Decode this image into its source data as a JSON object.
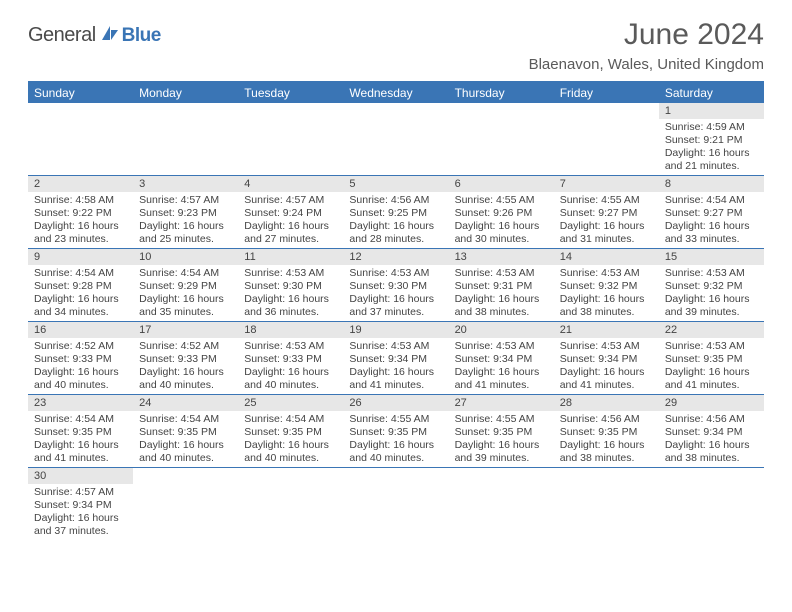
{
  "logo": {
    "main": "General",
    "sub": "Blue"
  },
  "title": "June 2024",
  "location": "Blaenavon, Wales, United Kingdom",
  "headers": [
    "Sunday",
    "Monday",
    "Tuesday",
    "Wednesday",
    "Thursday",
    "Friday",
    "Saturday"
  ],
  "colors": {
    "accent": "#3a75b5",
    "header_bg": "#3a75b5",
    "header_fg": "#ffffff",
    "daynum_bg": "#e7e7e7",
    "rule": "#3a75b5"
  },
  "weeks": [
    [
      null,
      null,
      null,
      null,
      null,
      null,
      {
        "n": "1",
        "sr": "4:59 AM",
        "ss": "9:21 PM",
        "dl": "16 hours and 21 minutes."
      }
    ],
    [
      {
        "n": "2",
        "sr": "4:58 AM",
        "ss": "9:22 PM",
        "dl": "16 hours and 23 minutes."
      },
      {
        "n": "3",
        "sr": "4:57 AM",
        "ss": "9:23 PM",
        "dl": "16 hours and 25 minutes."
      },
      {
        "n": "4",
        "sr": "4:57 AM",
        "ss": "9:24 PM",
        "dl": "16 hours and 27 minutes."
      },
      {
        "n": "5",
        "sr": "4:56 AM",
        "ss": "9:25 PM",
        "dl": "16 hours and 28 minutes."
      },
      {
        "n": "6",
        "sr": "4:55 AM",
        "ss": "9:26 PM",
        "dl": "16 hours and 30 minutes."
      },
      {
        "n": "7",
        "sr": "4:55 AM",
        "ss": "9:27 PM",
        "dl": "16 hours and 31 minutes."
      },
      {
        "n": "8",
        "sr": "4:54 AM",
        "ss": "9:27 PM",
        "dl": "16 hours and 33 minutes."
      }
    ],
    [
      {
        "n": "9",
        "sr": "4:54 AM",
        "ss": "9:28 PM",
        "dl": "16 hours and 34 minutes."
      },
      {
        "n": "10",
        "sr": "4:54 AM",
        "ss": "9:29 PM",
        "dl": "16 hours and 35 minutes."
      },
      {
        "n": "11",
        "sr": "4:53 AM",
        "ss": "9:30 PM",
        "dl": "16 hours and 36 minutes."
      },
      {
        "n": "12",
        "sr": "4:53 AM",
        "ss": "9:30 PM",
        "dl": "16 hours and 37 minutes."
      },
      {
        "n": "13",
        "sr": "4:53 AM",
        "ss": "9:31 PM",
        "dl": "16 hours and 38 minutes."
      },
      {
        "n": "14",
        "sr": "4:53 AM",
        "ss": "9:32 PM",
        "dl": "16 hours and 38 minutes."
      },
      {
        "n": "15",
        "sr": "4:53 AM",
        "ss": "9:32 PM",
        "dl": "16 hours and 39 minutes."
      }
    ],
    [
      {
        "n": "16",
        "sr": "4:52 AM",
        "ss": "9:33 PM",
        "dl": "16 hours and 40 minutes."
      },
      {
        "n": "17",
        "sr": "4:52 AM",
        "ss": "9:33 PM",
        "dl": "16 hours and 40 minutes."
      },
      {
        "n": "18",
        "sr": "4:53 AM",
        "ss": "9:33 PM",
        "dl": "16 hours and 40 minutes."
      },
      {
        "n": "19",
        "sr": "4:53 AM",
        "ss": "9:34 PM",
        "dl": "16 hours and 41 minutes."
      },
      {
        "n": "20",
        "sr": "4:53 AM",
        "ss": "9:34 PM",
        "dl": "16 hours and 41 minutes."
      },
      {
        "n": "21",
        "sr": "4:53 AM",
        "ss": "9:34 PM",
        "dl": "16 hours and 41 minutes."
      },
      {
        "n": "22",
        "sr": "4:53 AM",
        "ss": "9:35 PM",
        "dl": "16 hours and 41 minutes."
      }
    ],
    [
      {
        "n": "23",
        "sr": "4:54 AM",
        "ss": "9:35 PM",
        "dl": "16 hours and 41 minutes."
      },
      {
        "n": "24",
        "sr": "4:54 AM",
        "ss": "9:35 PM",
        "dl": "16 hours and 40 minutes."
      },
      {
        "n": "25",
        "sr": "4:54 AM",
        "ss": "9:35 PM",
        "dl": "16 hours and 40 minutes."
      },
      {
        "n": "26",
        "sr": "4:55 AM",
        "ss": "9:35 PM",
        "dl": "16 hours and 40 minutes."
      },
      {
        "n": "27",
        "sr": "4:55 AM",
        "ss": "9:35 PM",
        "dl": "16 hours and 39 minutes."
      },
      {
        "n": "28",
        "sr": "4:56 AM",
        "ss": "9:35 PM",
        "dl": "16 hours and 38 minutes."
      },
      {
        "n": "29",
        "sr": "4:56 AM",
        "ss": "9:34 PM",
        "dl": "16 hours and 38 minutes."
      }
    ],
    [
      {
        "n": "30",
        "sr": "4:57 AM",
        "ss": "9:34 PM",
        "dl": "16 hours and 37 minutes."
      },
      null,
      null,
      null,
      null,
      null,
      null
    ]
  ],
  "labels": {
    "sunrise": "Sunrise:",
    "sunset": "Sunset:",
    "daylight": "Daylight:"
  }
}
